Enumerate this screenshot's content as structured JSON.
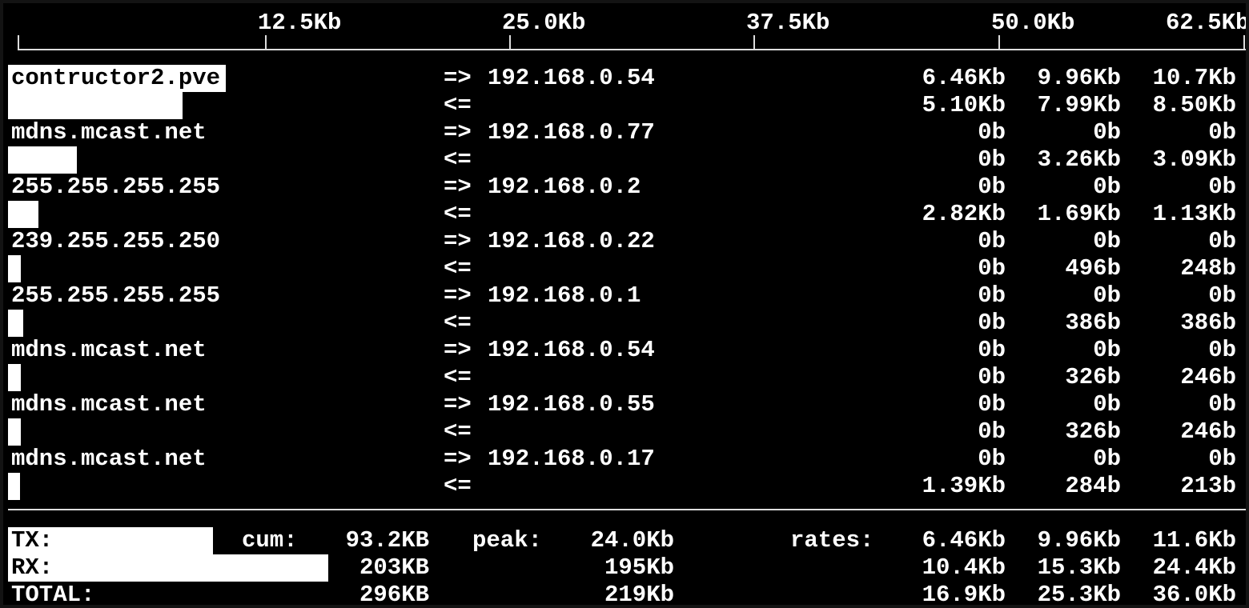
{
  "scale": {
    "ticks": [
      "12.5Kb",
      "25.0Kb",
      "37.5Kb",
      "50.0Kb",
      "62.5Kb"
    ]
  },
  "flows": [
    {
      "host": "contructor2.pve",
      "peer": "192.168.0.54",
      "tx": [
        "6.46Kb",
        "9.96Kb",
        "10.7Kb"
      ],
      "rx": [
        "5.10Kb",
        "7.99Kb",
        "8.50Kb"
      ]
    },
    {
      "host": "mdns.mcast.net",
      "peer": "192.168.0.77",
      "tx": [
        "0b",
        "0b",
        "0b"
      ],
      "rx": [
        "0b",
        "3.26Kb",
        "3.09Kb"
      ]
    },
    {
      "host": "255.255.255.255",
      "peer": "192.168.0.2",
      "tx": [
        "0b",
        "0b",
        "0b"
      ],
      "rx": [
        "2.82Kb",
        "1.69Kb",
        "1.13Kb"
      ]
    },
    {
      "host": "239.255.255.250",
      "peer": "192.168.0.22",
      "tx": [
        "0b",
        "0b",
        "0b"
      ],
      "rx": [
        "0b",
        "496b",
        "248b"
      ]
    },
    {
      "host": "255.255.255.255",
      "peer": "192.168.0.1",
      "tx": [
        "0b",
        "0b",
        "0b"
      ],
      "rx": [
        "0b",
        "386b",
        "386b"
      ]
    },
    {
      "host": "mdns.mcast.net",
      "peer": "192.168.0.54",
      "tx": [
        "0b",
        "0b",
        "0b"
      ],
      "rx": [
        "0b",
        "326b",
        "246b"
      ]
    },
    {
      "host": "mdns.mcast.net",
      "peer": "192.168.0.55",
      "tx": [
        "0b",
        "0b",
        "0b"
      ],
      "rx": [
        "0b",
        "326b",
        "246b"
      ]
    },
    {
      "host": "mdns.mcast.net",
      "peer": "192.168.0.17",
      "tx": [
        "0b",
        "0b",
        "0b"
      ],
      "rx": [
        "1.39Kb",
        "284b",
        "213b"
      ]
    }
  ],
  "arrows": {
    "out": "=>",
    "in": "<="
  },
  "totals": {
    "labels": {
      "cum": "cum:",
      "peak": "peak:",
      "rates": "rates:"
    },
    "rows": [
      {
        "label": "TX:",
        "cum": "93.2KB",
        "peak": "24.0Kb",
        "rates": [
          "6.46Kb",
          "9.96Kb",
          "11.6Kb"
        ]
      },
      {
        "label": "RX:",
        "cum": "203KB",
        "peak": "195Kb",
        "rates": [
          "10.4Kb",
          "15.3Kb",
          "24.4Kb"
        ]
      },
      {
        "label": "TOTAL:",
        "cum": "296KB",
        "peak": "219Kb",
        "rates": [
          "16.9Kb",
          "25.3Kb",
          "36.0Kb"
        ]
      }
    ]
  }
}
